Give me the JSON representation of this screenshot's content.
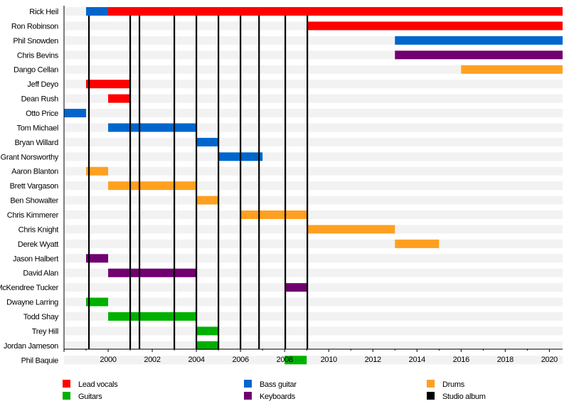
{
  "chart_data": {
    "type": "timeline",
    "xlim": [
      1998,
      2020.6
    ],
    "x_ticks": [
      2000,
      2002,
      2004,
      2006,
      2008,
      2010,
      2012,
      2014,
      2016,
      2018,
      2020
    ],
    "roles": [
      {
        "key": "vocals",
        "name": "Lead vocals",
        "color": "#ff0000"
      },
      {
        "key": "bass",
        "name": "Bass guitar",
        "color": "#0066cc"
      },
      {
        "key": "drums",
        "name": "Drums",
        "color": "#ffa020"
      },
      {
        "key": "guitars",
        "name": "Guitars",
        "color": "#00b000"
      },
      {
        "key": "keys",
        "name": "Keyboards",
        "color": "#700070"
      },
      {
        "key": "album",
        "name": "Studio album",
        "color": "#000000"
      }
    ],
    "members": [
      {
        "name": "Rick Heil",
        "spans": [
          {
            "role": "bass",
            "start": 1999,
            "end": 2000
          },
          {
            "role": "vocals",
            "start": 2000,
            "end": 2020.6
          }
        ]
      },
      {
        "name": "Ron Robinson",
        "spans": [
          {
            "role": "vocals",
            "start": 2009,
            "end": 2020.6
          }
        ]
      },
      {
        "name": "Phil Snowden",
        "spans": [
          {
            "role": "bass",
            "start": 2013,
            "end": 2020.6
          }
        ]
      },
      {
        "name": "Chris Bevins",
        "spans": [
          {
            "role": "keys",
            "start": 2013,
            "end": 2020.6
          }
        ]
      },
      {
        "name": "Dango Cellan",
        "spans": [
          {
            "role": "drums",
            "start": 2016,
            "end": 2020.6
          }
        ]
      },
      {
        "name": "Jeff Deyo",
        "spans": [
          {
            "role": "vocals",
            "start": 1999,
            "end": 2001
          }
        ]
      },
      {
        "name": "Dean Rush",
        "spans": [
          {
            "role": "vocals",
            "start": 2000,
            "end": 2001
          }
        ]
      },
      {
        "name": "Otto Price",
        "spans": [
          {
            "role": "bass",
            "start": 1998,
            "end": 1999
          }
        ]
      },
      {
        "name": "Tom Michael",
        "spans": [
          {
            "role": "bass",
            "start": 2000,
            "end": 2004
          }
        ]
      },
      {
        "name": "Bryan Willard",
        "spans": [
          {
            "role": "bass",
            "start": 2004,
            "end": 2005
          }
        ]
      },
      {
        "name": "Grant Norsworthy",
        "spans": [
          {
            "role": "bass",
            "start": 2005,
            "end": 2007
          }
        ]
      },
      {
        "name": "Aaron Blanton",
        "spans": [
          {
            "role": "drums",
            "start": 1999,
            "end": 2000
          }
        ]
      },
      {
        "name": "Brett Vargason",
        "spans": [
          {
            "role": "drums",
            "start": 2000,
            "end": 2004
          }
        ]
      },
      {
        "name": "Ben Showalter",
        "spans": [
          {
            "role": "drums",
            "start": 2004,
            "end": 2005
          }
        ]
      },
      {
        "name": "Chris Kimmerer",
        "spans": [
          {
            "role": "drums",
            "start": 2006,
            "end": 2009
          }
        ]
      },
      {
        "name": "Chris Knight",
        "spans": [
          {
            "role": "drums",
            "start": 2009,
            "end": 2013
          }
        ]
      },
      {
        "name": "Derek Wyatt",
        "spans": [
          {
            "role": "drums",
            "start": 2013,
            "end": 2015
          }
        ]
      },
      {
        "name": "Jason Halbert",
        "spans": [
          {
            "role": "keys",
            "start": 1999,
            "end": 2000
          }
        ]
      },
      {
        "name": "David Alan",
        "spans": [
          {
            "role": "keys",
            "start": 2000,
            "end": 2004
          }
        ]
      },
      {
        "name": "McKendree Tucker",
        "spans": [
          {
            "role": "keys",
            "start": 2008,
            "end": 2009
          }
        ]
      },
      {
        "name": "Dwayne Larring",
        "spans": [
          {
            "role": "guitars",
            "start": 1999,
            "end": 2000
          }
        ]
      },
      {
        "name": "Todd Shay",
        "spans": [
          {
            "role": "guitars",
            "start": 2000,
            "end": 2004
          }
        ]
      },
      {
        "name": "Trey Hill",
        "spans": [
          {
            "role": "guitars",
            "start": 2004,
            "end": 2005
          }
        ]
      },
      {
        "name": "Jordan Jameson",
        "spans": [
          {
            "role": "guitars",
            "start": 2004,
            "end": 2005
          }
        ]
      },
      {
        "name": "Phil Baquie",
        "spans": [
          {
            "role": "guitars",
            "start": 2008,
            "end": 2009
          }
        ]
      }
    ],
    "albums": [
      1999.13,
      2001.0,
      2001.42,
      2003.0,
      2004.0,
      2005.0,
      2006.0,
      2006.84,
      2008.03,
      2009.03
    ],
    "grid": false,
    "legend_position": "bottom"
  }
}
